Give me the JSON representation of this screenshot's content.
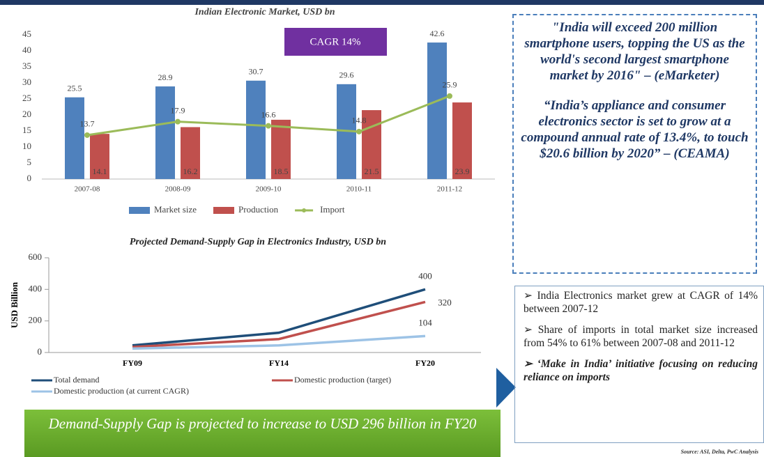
{
  "chart_data": [
    {
      "type": "bar",
      "title": "Indian Electronic Market, USD bn",
      "annotation": "CAGR 14%",
      "categories": [
        "2007-08",
        "2008-09",
        "2009-10",
        "2010-11",
        "2011-12"
      ],
      "series": [
        {
          "name": "Market size",
          "color": "#4f81bd",
          "values": [
            25.5,
            28.9,
            30.7,
            29.6,
            42.6
          ]
        },
        {
          "name": "Production",
          "color": "#c0504d",
          "values": [
            14.1,
            16.2,
            18.5,
            21.5,
            23.9
          ]
        },
        {
          "name": "Import",
          "color": "#9bbb59",
          "type": "line",
          "values": [
            13.7,
            17.9,
            16.6,
            14.8,
            25.9
          ]
        }
      ],
      "ylim": [
        0,
        45
      ],
      "yticks": [
        0,
        5,
        10,
        15,
        20,
        25,
        30,
        35,
        40,
        45
      ],
      "legend": "bottom"
    },
    {
      "type": "line",
      "title": "Projected Demand-Supply Gap in Electronics Industry, USD bn",
      "ylabel": "USD Billion",
      "categories": [
        "FY09",
        "FY14",
        "FY20"
      ],
      "series": [
        {
          "name": "Total demand",
          "color": "#1f4e79",
          "values": [
            45,
            125,
            400
          ]
        },
        {
          "name": "Domestic production (target)",
          "color": "#c0504d",
          "values": [
            35,
            85,
            320
          ]
        },
        {
          "name": "Domestic production (at current CAGR)",
          "color": "#9dc3e6",
          "values": [
            25,
            45,
            104
          ]
        }
      ],
      "ylim": [
        0,
        600
      ],
      "yticks": [
        0,
        200,
        400,
        600
      ],
      "legend": "bottom"
    }
  ],
  "quotes": [
    "\"India will exceed 200 million smartphone users, topping the US as the world's second largest smartphone market by 2016\" – (eMarketer)",
    "“India’s appliance and consumer electronics sector is set to grow at a compound annual rate of 13.4%, to touch $20.6 billion by 2020” – (CEAMA)"
  ],
  "bullets": [
    "India Electronics market grew at CAGR of 14% between 2007-12",
    "Share of imports in total market size increased from 54% to 61% between 2007-08 and 2011-12",
    "‘Make in India’ initiative focusing on reducing reliance on imports"
  ],
  "banner": "Demand-Supply Gap is projected to increase to USD 296 billion in FY20",
  "source": "Source: ASI, Delta, PwC Analysis"
}
